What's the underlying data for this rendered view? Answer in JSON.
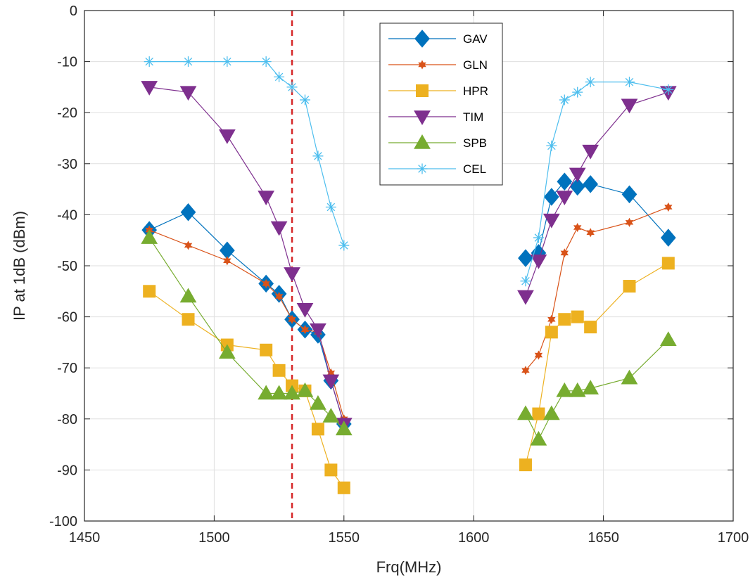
{
  "chart_data": {
    "type": "line",
    "title": "",
    "xlabel": "Frq(MHz)",
    "ylabel": "IP at 1dB (dBm)",
    "xlim": [
      1450,
      1700
    ],
    "ylim": [
      -100,
      0
    ],
    "xticks": [
      1450,
      1500,
      1550,
      1600,
      1650,
      1700
    ],
    "yticks": [
      0,
      -10,
      -20,
      -30,
      -40,
      -50,
      -60,
      -70,
      -80,
      -90,
      -100
    ],
    "grid": true,
    "legend_position": "top-center",
    "reference_line": {
      "x": 1530,
      "color": "#d62728",
      "style": "dashed"
    },
    "series": [
      {
        "name": "GAV",
        "color": "#0072BD",
        "marker": "diamond",
        "segments": [
          [
            [
              1475,
              -43
            ],
            [
              1490,
              -39.5
            ],
            [
              1505,
              -47
            ],
            [
              1520,
              -53.5
            ],
            [
              1525,
              -55.5
            ],
            [
              1530,
              -60.5
            ],
            [
              1535,
              -62.5
            ],
            [
              1540,
              -63.5
            ],
            [
              1545,
              -72.5
            ],
            [
              1550,
              -81
            ]
          ],
          [
            [
              1620,
              -48.5
            ],
            [
              1625,
              -47.5
            ],
            [
              1630,
              -36.5
            ],
            [
              1635,
              -33.5
            ],
            [
              1640,
              -34.5
            ],
            [
              1645,
              -34
            ],
            [
              1660,
              -36
            ],
            [
              1675,
              -44.5
            ]
          ]
        ]
      },
      {
        "name": "GLN",
        "color": "#D95319",
        "marker": "hexagram",
        "segments": [
          [
            [
              1475,
              -43
            ],
            [
              1490,
              -46
            ],
            [
              1505,
              -49
            ],
            [
              1520,
              -53.5
            ],
            [
              1525,
              -56
            ],
            [
              1530,
              -60.5
            ],
            [
              1535,
              -62.5
            ],
            [
              1540,
              -63
            ],
            [
              1545,
              -71
            ],
            [
              1550,
              -80
            ]
          ],
          [
            [
              1620,
              -70.5
            ],
            [
              1625,
              -67.5
            ],
            [
              1630,
              -60.5
            ],
            [
              1635,
              -47.5
            ],
            [
              1640,
              -42.5
            ],
            [
              1645,
              -43.5
            ],
            [
              1660,
              -41.5
            ],
            [
              1675,
              -38.5
            ]
          ]
        ]
      },
      {
        "name": "HPR",
        "color": "#EDB120",
        "marker": "square",
        "segments": [
          [
            [
              1475,
              -55
            ],
            [
              1490,
              -60.5
            ],
            [
              1505,
              -65.5
            ],
            [
              1520,
              -66.5
            ],
            [
              1525,
              -70.5
            ],
            [
              1530,
              -73.5
            ],
            [
              1535,
              -74.5
            ],
            [
              1540,
              -82
            ],
            [
              1545,
              -90
            ],
            [
              1550,
              -93.5
            ]
          ],
          [
            [
              1620,
              -89
            ],
            [
              1625,
              -79
            ],
            [
              1630,
              -63
            ],
            [
              1635,
              -60.5
            ],
            [
              1640,
              -60
            ],
            [
              1645,
              -62
            ],
            [
              1660,
              -54
            ],
            [
              1675,
              -49.5
            ]
          ]
        ]
      },
      {
        "name": "TIM",
        "color": "#7E2F8E",
        "marker": "triangle-down",
        "segments": [
          [
            [
              1475,
              -15
            ],
            [
              1490,
              -16
            ],
            [
              1505,
              -24.5
            ],
            [
              1520,
              -36.5
            ],
            [
              1525,
              -42.5
            ],
            [
              1530,
              -51.5
            ],
            [
              1535,
              -58.5
            ],
            [
              1540,
              -62.5
            ],
            [
              1545,
              -72.5
            ],
            [
              1550,
              -81
            ]
          ],
          [
            [
              1620,
              -56
            ],
            [
              1625,
              -49
            ],
            [
              1630,
              -41
            ],
            [
              1635,
              -36.5
            ],
            [
              1640,
              -32
            ],
            [
              1645,
              -27.5
            ],
            [
              1660,
              -18.5
            ],
            [
              1675,
              -16
            ]
          ]
        ]
      },
      {
        "name": "SPB",
        "color": "#77AC30",
        "marker": "triangle-up",
        "segments": [
          [
            [
              1475,
              -44.5
            ],
            [
              1490,
              -56
            ],
            [
              1505,
              -67
            ],
            [
              1520,
              -75
            ],
            [
              1525,
              -75
            ],
            [
              1530,
              -75
            ],
            [
              1535,
              -74.5
            ],
            [
              1540,
              -77
            ],
            [
              1545,
              -79.5
            ],
            [
              1550,
              -82
            ]
          ],
          [
            [
              1620,
              -79
            ],
            [
              1625,
              -84
            ],
            [
              1630,
              -79
            ],
            [
              1635,
              -74.5
            ],
            [
              1640,
              -74.5
            ],
            [
              1645,
              -74
            ],
            [
              1660,
              -72
            ],
            [
              1675,
              -64.5
            ]
          ]
        ]
      },
      {
        "name": "CEL",
        "color": "#4DBEEE",
        "marker": "asterisk",
        "segments": [
          [
            [
              1475,
              -10
            ],
            [
              1490,
              -10
            ],
            [
              1505,
              -10
            ],
            [
              1520,
              -10
            ],
            [
              1525,
              -13
            ],
            [
              1530,
              -15
            ],
            [
              1535,
              -17.5
            ],
            [
              1540,
              -28.5
            ],
            [
              1545,
              -38.5
            ],
            [
              1550,
              -46
            ]
          ],
          [
            [
              1620,
              -53
            ],
            [
              1625,
              -44.5
            ],
            [
              1630,
              -26.5
            ],
            [
              1635,
              -17.5
            ],
            [
              1640,
              -16
            ],
            [
              1645,
              -14
            ],
            [
              1660,
              -14
            ],
            [
              1675,
              -15.5
            ]
          ]
        ]
      }
    ]
  }
}
